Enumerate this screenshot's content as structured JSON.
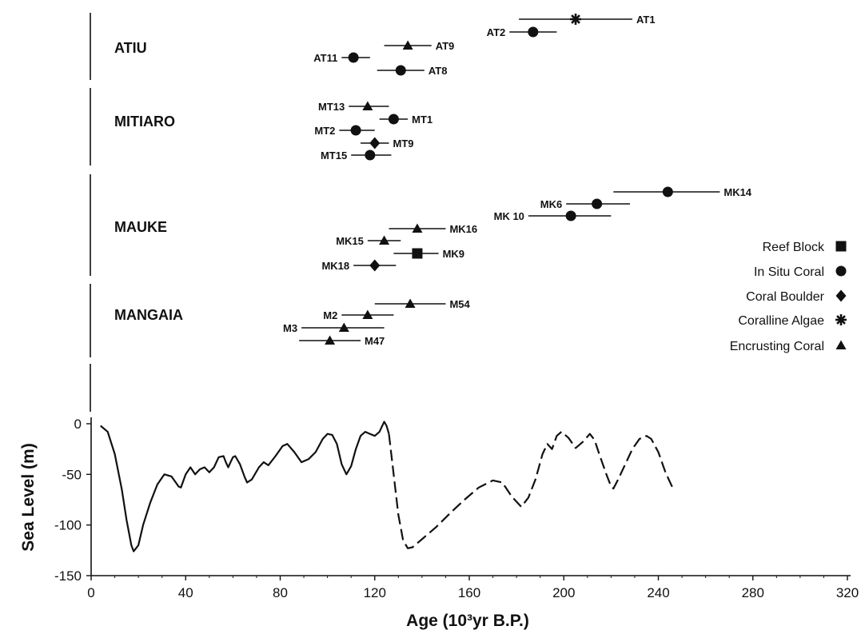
{
  "chart_data": {
    "type": "scatter",
    "xlabel": "Age (10³yr B.P.)",
    "ylabel": "Sea Level (m)",
    "xlim": [
      0,
      320
    ],
    "ylim": [
      -150,
      0
    ],
    "xticks": [
      "0",
      "40",
      "80",
      "120",
      "160",
      "200",
      "240",
      "280",
      "320"
    ],
    "yticks": [
      "0",
      "-50",
      "-100",
      "-150"
    ],
    "legend": {
      "placement": "right",
      "entries": [
        {
          "label": "Reef Block",
          "marker": "square"
        },
        {
          "label": "In Situ Coral",
          "marker": "circle"
        },
        {
          "label": "Coral Boulder",
          "marker": "diamond"
        },
        {
          "label": "Coralline Algae",
          "marker": "asterisk"
        },
        {
          "label": "Encrusting Coral",
          "marker": "triangle"
        }
      ]
    },
    "islands": [
      {
        "name": "ATIU",
        "samples": [
          {
            "id": "AT1",
            "age": 205,
            "min": 181,
            "max": 229,
            "marker": "asterisk"
          },
          {
            "id": "AT2",
            "age": 187,
            "min": 177,
            "max": 197,
            "marker": "circle"
          },
          {
            "id": "AT9",
            "age": 134,
            "min": 124,
            "max": 144,
            "marker": "triangle"
          },
          {
            "id": "AT11",
            "age": 111,
            "min": 106,
            "max": 118,
            "marker": "circle"
          },
          {
            "id": "AT8",
            "age": 131,
            "min": 121,
            "max": 141,
            "marker": "circle"
          }
        ]
      },
      {
        "name": "MITIARO",
        "samples": [
          {
            "id": "MT13",
            "age": 117,
            "min": 109,
            "max": 126,
            "marker": "triangle"
          },
          {
            "id": "MT1",
            "age": 128,
            "min": 122,
            "max": 134,
            "marker": "circle"
          },
          {
            "id": "MT2",
            "age": 112,
            "min": 105,
            "max": 120,
            "marker": "circle"
          },
          {
            "id": "MT9",
            "age": 120,
            "min": 114,
            "max": 126,
            "marker": "diamond"
          },
          {
            "id": "MT15",
            "age": 118,
            "min": 110,
            "max": 127,
            "marker": "circle"
          }
        ]
      },
      {
        "name": "MAUKE",
        "samples": [
          {
            "id": "MK14",
            "age": 244,
            "min": 221,
            "max": 266,
            "marker": "circle"
          },
          {
            "id": "MK6",
            "age": 214,
            "min": 201,
            "max": 228,
            "marker": "circle"
          },
          {
            "id": "MK 10",
            "age": 203,
            "min": 185,
            "max": 220,
            "marker": "circle"
          },
          {
            "id": "MK16",
            "age": 138,
            "min": 126,
            "max": 150,
            "marker": "triangle"
          },
          {
            "id": "MK15",
            "age": 124,
            "min": 117,
            "max": 131,
            "marker": "triangle"
          },
          {
            "id": "MK9",
            "age": 138,
            "min": 128,
            "max": 147,
            "marker": "square"
          },
          {
            "id": "MK18",
            "age": 120,
            "min": 111,
            "max": 129,
            "marker": "diamond"
          }
        ]
      },
      {
        "name": "MANGAIA",
        "samples": [
          {
            "id": "M54",
            "age": 135,
            "min": 120,
            "max": 150,
            "marker": "triangle"
          },
          {
            "id": "M2",
            "age": 117,
            "min": 106,
            "max": 128,
            "marker": "triangle"
          },
          {
            "id": "M3",
            "age": 107,
            "min": 89,
            "max": 124,
            "marker": "triangle"
          },
          {
            "id": "M47",
            "age": 101,
            "min": 88,
            "max": 114,
            "marker": "triangle"
          }
        ]
      }
    ],
    "sea_level_curve": {
      "solid": [
        [
          4,
          -2
        ],
        [
          7,
          -8
        ],
        [
          10,
          -30
        ],
        [
          13,
          -65
        ],
        [
          15,
          -95
        ],
        [
          17,
          -120
        ],
        [
          18,
          -126
        ],
        [
          20,
          -120
        ],
        [
          22,
          -100
        ],
        [
          25,
          -78
        ],
        [
          28,
          -60
        ],
        [
          31,
          -50
        ],
        [
          34,
          -52
        ],
        [
          37,
          -62
        ],
        [
          38,
          -63
        ],
        [
          40,
          -50
        ],
        [
          42,
          -43
        ],
        [
          44,
          -50
        ],
        [
          46,
          -45
        ],
        [
          48,
          -43
        ],
        [
          50,
          -48
        ],
        [
          52,
          -43
        ],
        [
          54,
          -33
        ],
        [
          56,
          -32
        ],
        [
          57,
          -38
        ],
        [
          58,
          -43
        ],
        [
          59,
          -38
        ],
        [
          60,
          -33
        ],
        [
          61,
          -32
        ],
        [
          63,
          -40
        ],
        [
          65,
          -53
        ],
        [
          66,
          -58
        ],
        [
          68,
          -55
        ],
        [
          71,
          -43
        ],
        [
          73,
          -38
        ],
        [
          75,
          -41
        ],
        [
          78,
          -32
        ],
        [
          81,
          -22
        ],
        [
          83,
          -20
        ],
        [
          86,
          -28
        ],
        [
          89,
          -38
        ],
        [
          92,
          -35
        ],
        [
          95,
          -28
        ],
        [
          98,
          -15
        ],
        [
          100,
          -10
        ],
        [
          102,
          -11
        ],
        [
          104,
          -20
        ],
        [
          106,
          -40
        ],
        [
          108,
          -50
        ],
        [
          110,
          -42
        ],
        [
          112,
          -25
        ],
        [
          114,
          -12
        ],
        [
          116,
          -8
        ],
        [
          118,
          -10
        ],
        [
          120,
          -12
        ],
        [
          122,
          -8
        ],
        [
          123,
          -3
        ],
        [
          124,
          2
        ],
        [
          125,
          -2
        ],
        [
          126,
          -10
        ]
      ],
      "dashed": [
        [
          126,
          -10
        ],
        [
          128,
          -50
        ],
        [
          130,
          -90
        ],
        [
          132,
          -115
        ],
        [
          134,
          -123
        ],
        [
          136,
          -122
        ],
        [
          140,
          -114
        ],
        [
          146,
          -102
        ],
        [
          152,
          -88
        ],
        [
          158,
          -75
        ],
        [
          164,
          -63
        ],
        [
          170,
          -56
        ],
        [
          174,
          -58
        ],
        [
          178,
          -72
        ],
        [
          182,
          -82
        ],
        [
          185,
          -73
        ],
        [
          188,
          -55
        ],
        [
          191,
          -30
        ],
        [
          193,
          -20
        ],
        [
          195,
          -25
        ],
        [
          197,
          -12
        ],
        [
          199,
          -8
        ],
        [
          202,
          -14
        ],
        [
          205,
          -24
        ],
        [
          208,
          -18
        ],
        [
          211,
          -10
        ],
        [
          213,
          -16
        ],
        [
          215,
          -30
        ],
        [
          218,
          -50
        ],
        [
          220,
          -62
        ],
        [
          221,
          -64
        ],
        [
          223,
          -55
        ],
        [
          226,
          -40
        ],
        [
          229,
          -25
        ],
        [
          232,
          -15
        ],
        [
          235,
          -12
        ],
        [
          237,
          -15
        ],
        [
          240,
          -28
        ],
        [
          243,
          -48
        ],
        [
          246,
          -63
        ],
        [
          247,
          -66
        ]
      ]
    }
  }
}
